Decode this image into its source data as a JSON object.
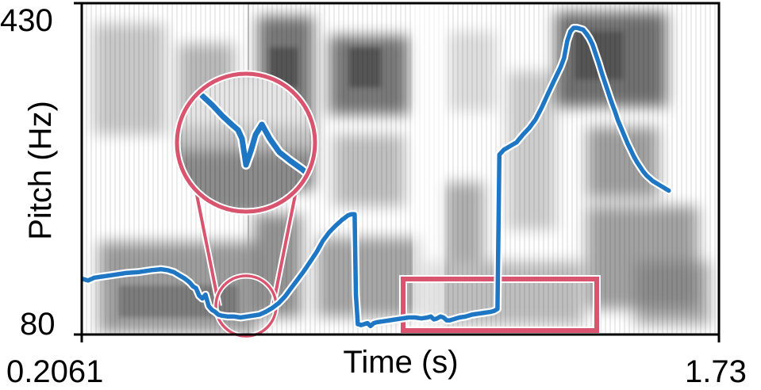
{
  "chart_data": {
    "type": "line",
    "background": "spectrogram",
    "xlabel": "Time (s)",
    "ylabel": "Pitch (Hz)",
    "xlim": [
      0.2061,
      1.73
    ],
    "ylim": [
      80,
      430
    ],
    "x_tick_labels": [
      "0.2061",
      "1.73"
    ],
    "y_tick_labels": [
      "430",
      "80"
    ],
    "grid": false,
    "series": [
      {
        "color": "#1f77c4",
        "points": [
          [
            0.2061,
            139
          ],
          [
            0.2213,
            137
          ],
          [
            0.2365,
            140
          ],
          [
            0.2517,
            141
          ],
          [
            0.282,
            143
          ],
          [
            0.3124,
            145
          ],
          [
            0.3428,
            146
          ],
          [
            0.3731,
            148
          ],
          [
            0.3959,
            149
          ],
          [
            0.4111,
            148
          ],
          [
            0.4263,
            146
          ],
          [
            0.4414,
            142
          ],
          [
            0.4528,
            139
          ],
          [
            0.4642,
            135
          ],
          [
            0.4718,
            131
          ],
          [
            0.4794,
            129
          ],
          [
            0.487,
            121
          ],
          [
            0.4946,
            118
          ],
          [
            0.5022,
            122
          ],
          [
            0.5098,
            110
          ],
          [
            0.5173,
            106
          ],
          [
            0.5249,
            104
          ],
          [
            0.5325,
            101
          ],
          [
            0.5401,
            100
          ],
          [
            0.5553,
            99
          ],
          [
            0.5704,
            99
          ],
          [
            0.5856,
            98
          ],
          [
            0.6008,
            99
          ],
          [
            0.616,
            100
          ],
          [
            0.6311,
            101
          ],
          [
            0.6463,
            104
          ],
          [
            0.6615,
            108
          ],
          [
            0.6767,
            113
          ],
          [
            0.6919,
            120
          ],
          [
            0.707,
            129
          ],
          [
            0.7222,
            138
          ],
          [
            0.7374,
            147
          ],
          [
            0.7526,
            157
          ],
          [
            0.7677,
            167
          ],
          [
            0.7829,
            179
          ],
          [
            0.7981,
            188
          ],
          [
            0.8133,
            195
          ],
          [
            0.8284,
            201
          ],
          [
            0.8436,
            206
          ],
          [
            0.8512,
            207
          ],
          [
            0.8588,
            207
          ],
          [
            0.8618,
            122
          ],
          [
            0.8664,
            91
          ],
          [
            0.874,
            90
          ],
          [
            0.8816,
            91
          ],
          [
            0.8892,
            92
          ],
          [
            0.8967,
            89
          ],
          [
            0.9043,
            92
          ],
          [
            0.9119,
            93
          ],
          [
            0.9271,
            94
          ],
          [
            0.9423,
            95
          ],
          [
            0.9574,
            96
          ],
          [
            0.9726,
            97
          ],
          [
            0.9878,
            98
          ],
          [
            1.003,
            98
          ],
          [
            1.0181,
            97
          ],
          [
            1.0333,
            98
          ],
          [
            1.0409,
            99
          ],
          [
            1.0485,
            96
          ],
          [
            1.0561,
            97
          ],
          [
            1.0637,
            99
          ],
          [
            1.0713,
            98
          ],
          [
            1.0789,
            95
          ],
          [
            1.0864,
            95
          ],
          [
            1.094,
            96
          ],
          [
            1.1092,
            98
          ],
          [
            1.1244,
            99
          ],
          [
            1.1396,
            101
          ],
          [
            1.1547,
            102
          ],
          [
            1.1699,
            103
          ],
          [
            1.1851,
            104
          ],
          [
            1.1927,
            105
          ],
          [
            1.2003,
            107
          ],
          [
            1.2049,
            270
          ],
          [
            1.2154,
            275
          ],
          [
            1.2306,
            279
          ],
          [
            1.2458,
            283
          ],
          [
            1.261,
            291
          ],
          [
            1.2761,
            298
          ],
          [
            1.2913,
            307
          ],
          [
            1.3065,
            320
          ],
          [
            1.3217,
            335
          ],
          [
            1.3368,
            349
          ],
          [
            1.352,
            363
          ],
          [
            1.3596,
            372
          ],
          [
            1.3672,
            390
          ],
          [
            1.3748,
            400
          ],
          [
            1.3824,
            404
          ],
          [
            1.39,
            404
          ],
          [
            1.3975,
            403
          ],
          [
            1.4051,
            402
          ],
          [
            1.4127,
            398
          ],
          [
            1.4203,
            393
          ],
          [
            1.4279,
            386
          ],
          [
            1.4355,
            376
          ],
          [
            1.4431,
            366
          ],
          [
            1.4507,
            355
          ],
          [
            1.4583,
            345
          ],
          [
            1.4659,
            335
          ],
          [
            1.4735,
            325
          ],
          [
            1.481,
            316
          ],
          [
            1.4887,
            306
          ],
          [
            1.4962,
            298
          ],
          [
            1.5038,
            290
          ],
          [
            1.5114,
            282
          ],
          [
            1.519,
            275
          ],
          [
            1.5266,
            268
          ],
          [
            1.5342,
            262
          ],
          [
            1.5418,
            257
          ],
          [
            1.5494,
            252
          ],
          [
            1.557,
            248
          ],
          [
            1.5646,
            245
          ],
          [
            1.5721,
            242
          ],
          [
            1.5797,
            240
          ],
          [
            1.5873,
            238
          ],
          [
            1.5949,
            236
          ],
          [
            1.6025,
            234
          ],
          [
            1.6101,
            232
          ]
        ]
      }
    ],
    "annotations": [
      {
        "type": "circle",
        "color": "#d9546e"
      },
      {
        "type": "magnified-inset",
        "color": "#d9546e"
      },
      {
        "type": "rectangle",
        "color": "#d9546e"
      }
    ]
  }
}
